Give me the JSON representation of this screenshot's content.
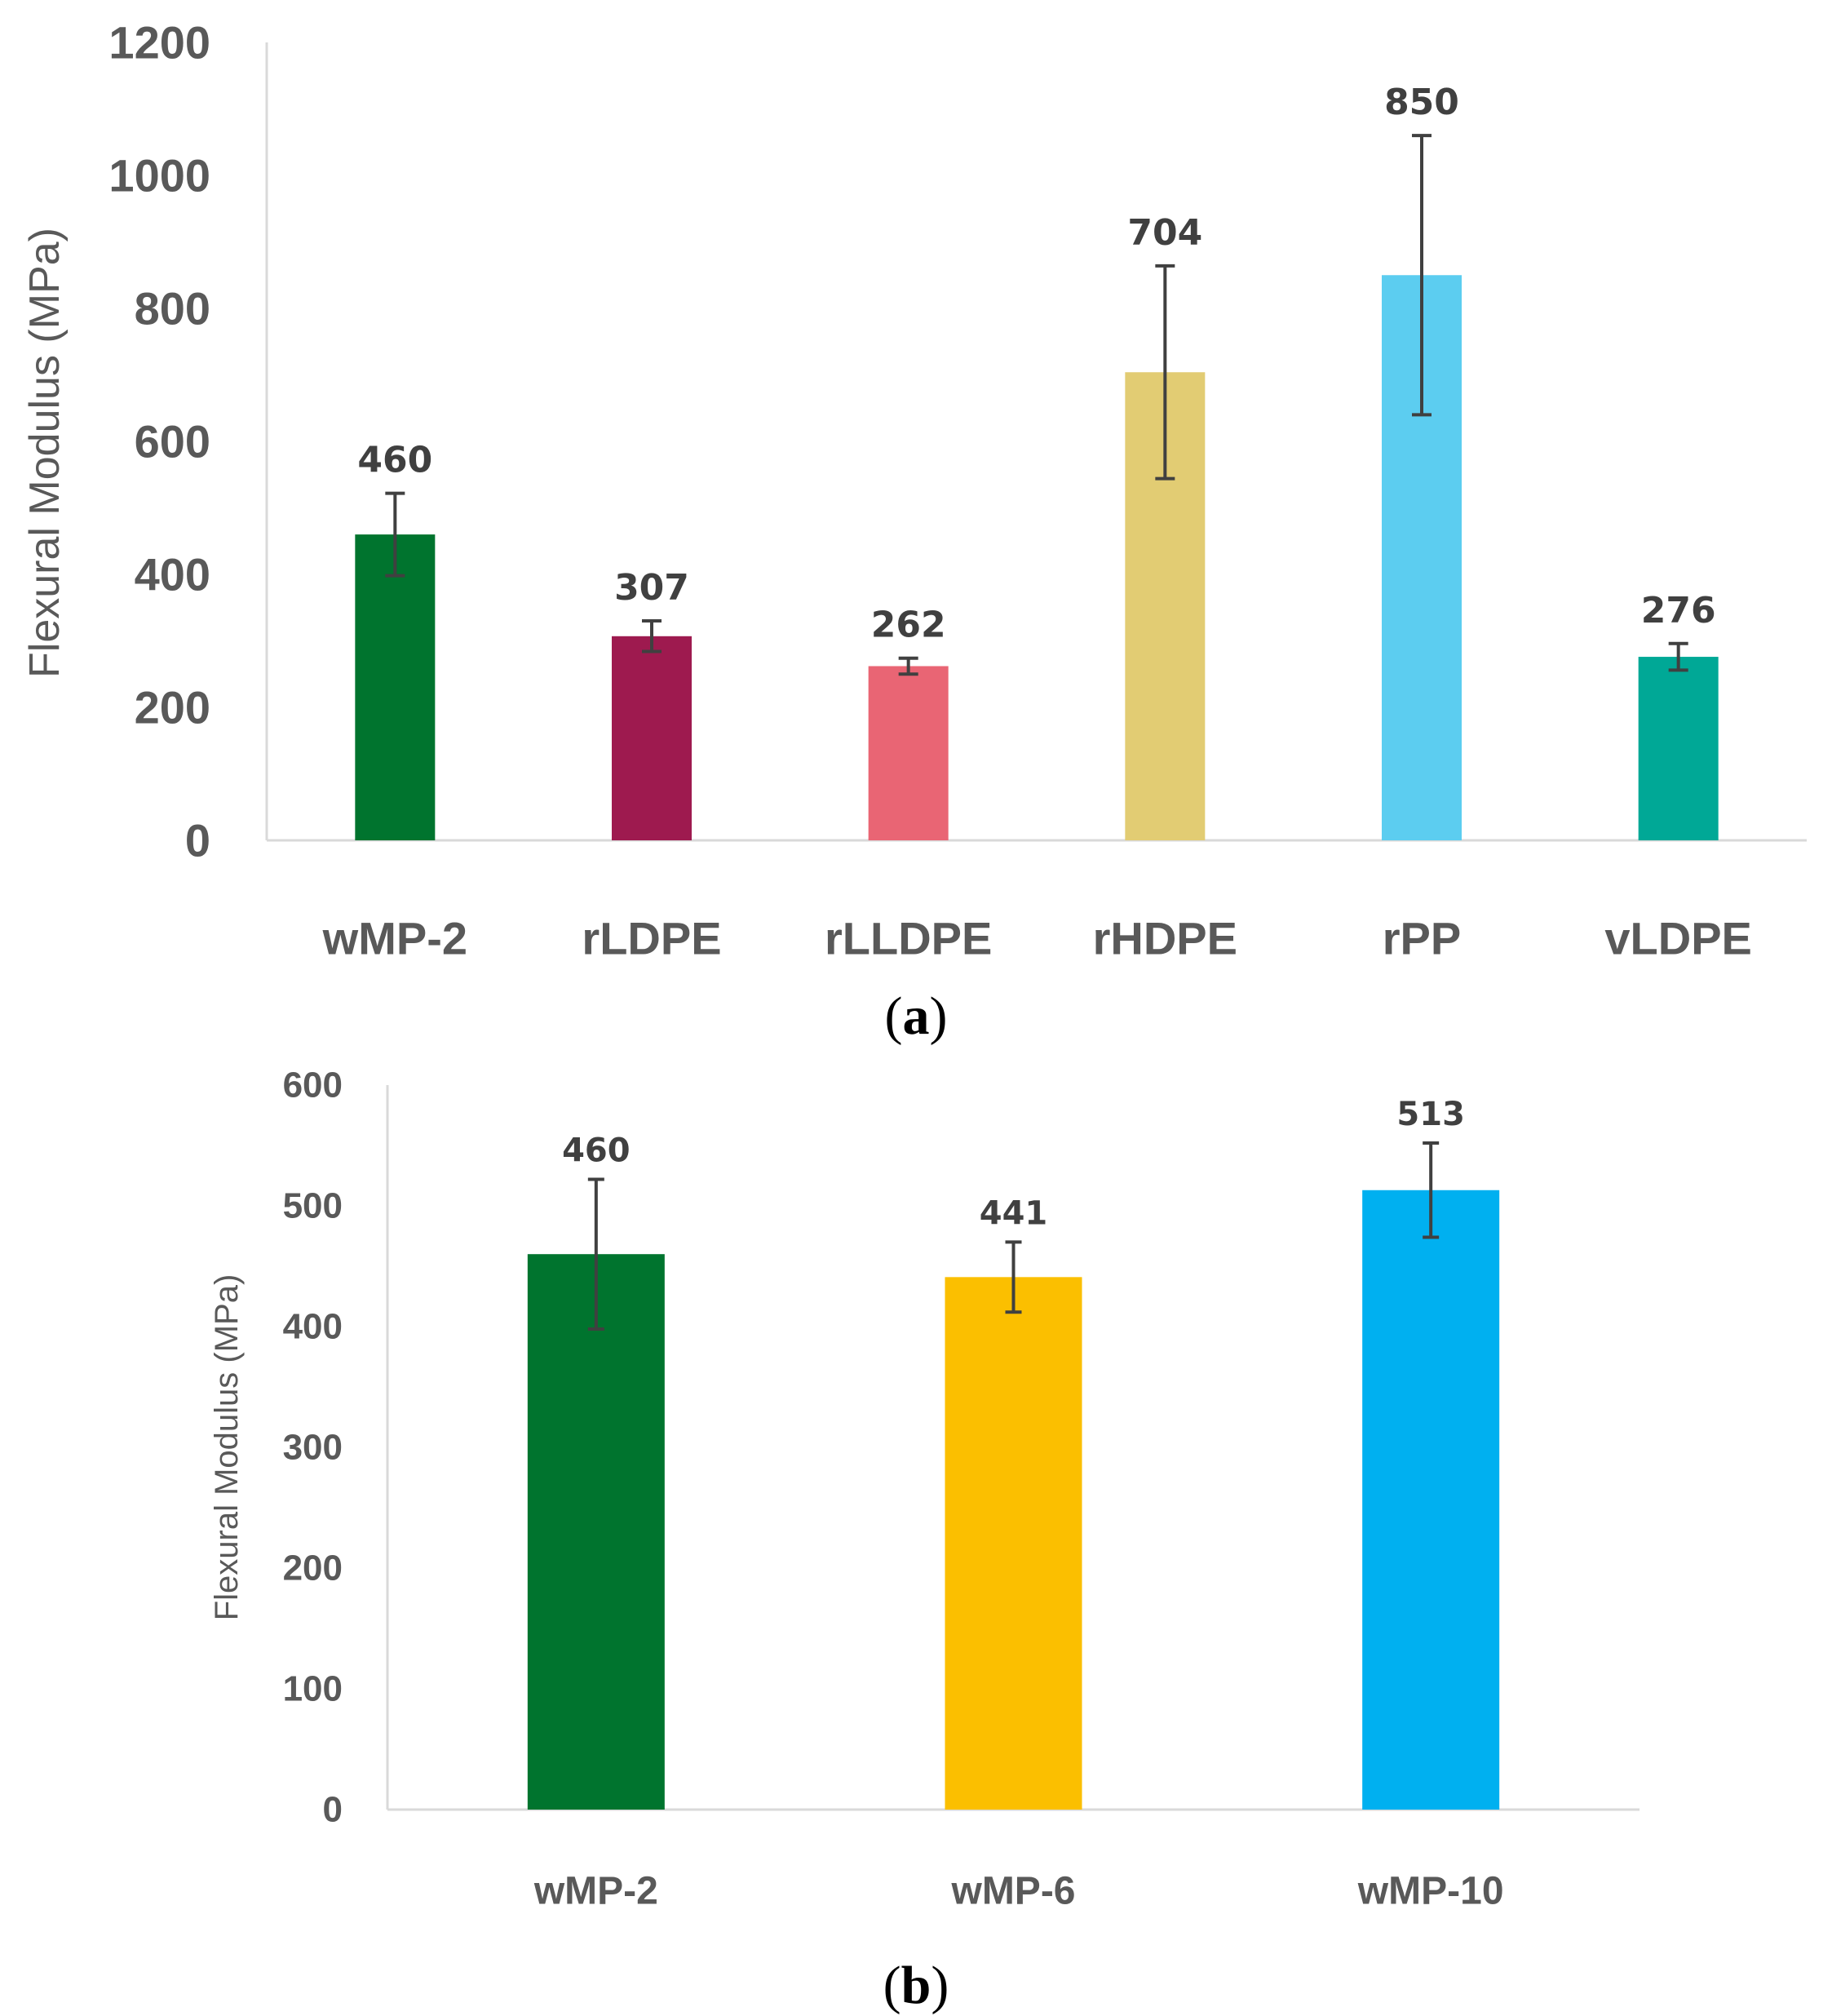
{
  "chart_data": [
    {
      "type": "bar",
      "panel_label_open": "(",
      "panel_label": "a",
      "panel_label_close": ")",
      "ylabel": "Flexural Modulus (MPa)",
      "xlabel": "",
      "ylim": [
        0,
        1200
      ],
      "yticks": [
        "0",
        "200",
        "400",
        "600",
        "800",
        "1000",
        "1200"
      ],
      "ytick_values": [
        0,
        200,
        400,
        600,
        800,
        1000,
        1200
      ],
      "categories": [
        "wMP-2",
        "rLDPE",
        "rLLDPE",
        "rHDPE",
        "rPP",
        "vLDPE"
      ],
      "values": [
        460,
        307,
        262,
        704,
        850,
        276
      ],
      "value_labels": [
        "460",
        "307",
        "262",
        "704",
        "850",
        "276"
      ],
      "error": [
        62,
        23,
        12,
        160,
        210,
        20
      ],
      "colors": [
        "#00742e",
        "#9e1a4f",
        "#e96574",
        "#e2cc73",
        "#5ccdf0",
        "#00a896"
      ],
      "grid": false
    },
    {
      "type": "bar",
      "panel_label_open": "(",
      "panel_label": "b",
      "panel_label_close": ")",
      "ylabel": "Flexural Modulus (MPa)",
      "xlabel": "",
      "ylim": [
        0,
        600
      ],
      "yticks": [
        "0",
        "100",
        "200",
        "300",
        "400",
        "500",
        "600"
      ],
      "ytick_values": [
        0,
        100,
        200,
        300,
        400,
        500,
        600
      ],
      "categories": [
        "wMP-2",
        "wMP-6",
        "wMP-10"
      ],
      "values": [
        460,
        441,
        513
      ],
      "value_labels": [
        "460",
        "441",
        "513"
      ],
      "error": [
        62,
        29,
        39
      ],
      "colors": [
        "#00742e",
        "#fbbf00",
        "#00b0f0"
      ],
      "grid": false
    }
  ]
}
